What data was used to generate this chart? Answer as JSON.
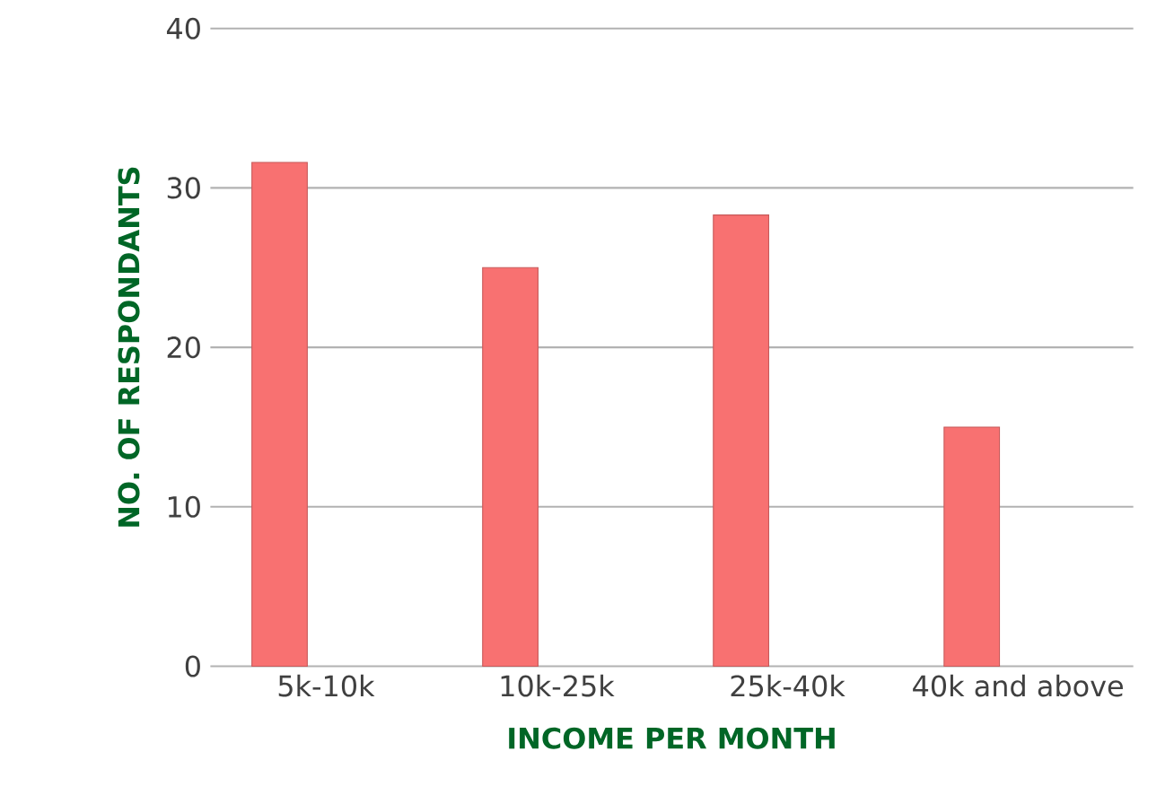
{
  "chart_data": {
    "type": "bar",
    "xlabel": "INCOME PER MONTH",
    "ylabel": "NO. OF RESPONDANTS",
    "categories": [
      "5k-10k",
      "10k-25k",
      "25k-40k",
      "40k and above"
    ],
    "values": [
      31.6,
      25.0,
      28.3,
      15.0
    ],
    "color": "#f87171",
    "ylim": [
      0,
      40
    ],
    "yticks": [
      0,
      10,
      20,
      30,
      40
    ],
    "grid": "y"
  }
}
